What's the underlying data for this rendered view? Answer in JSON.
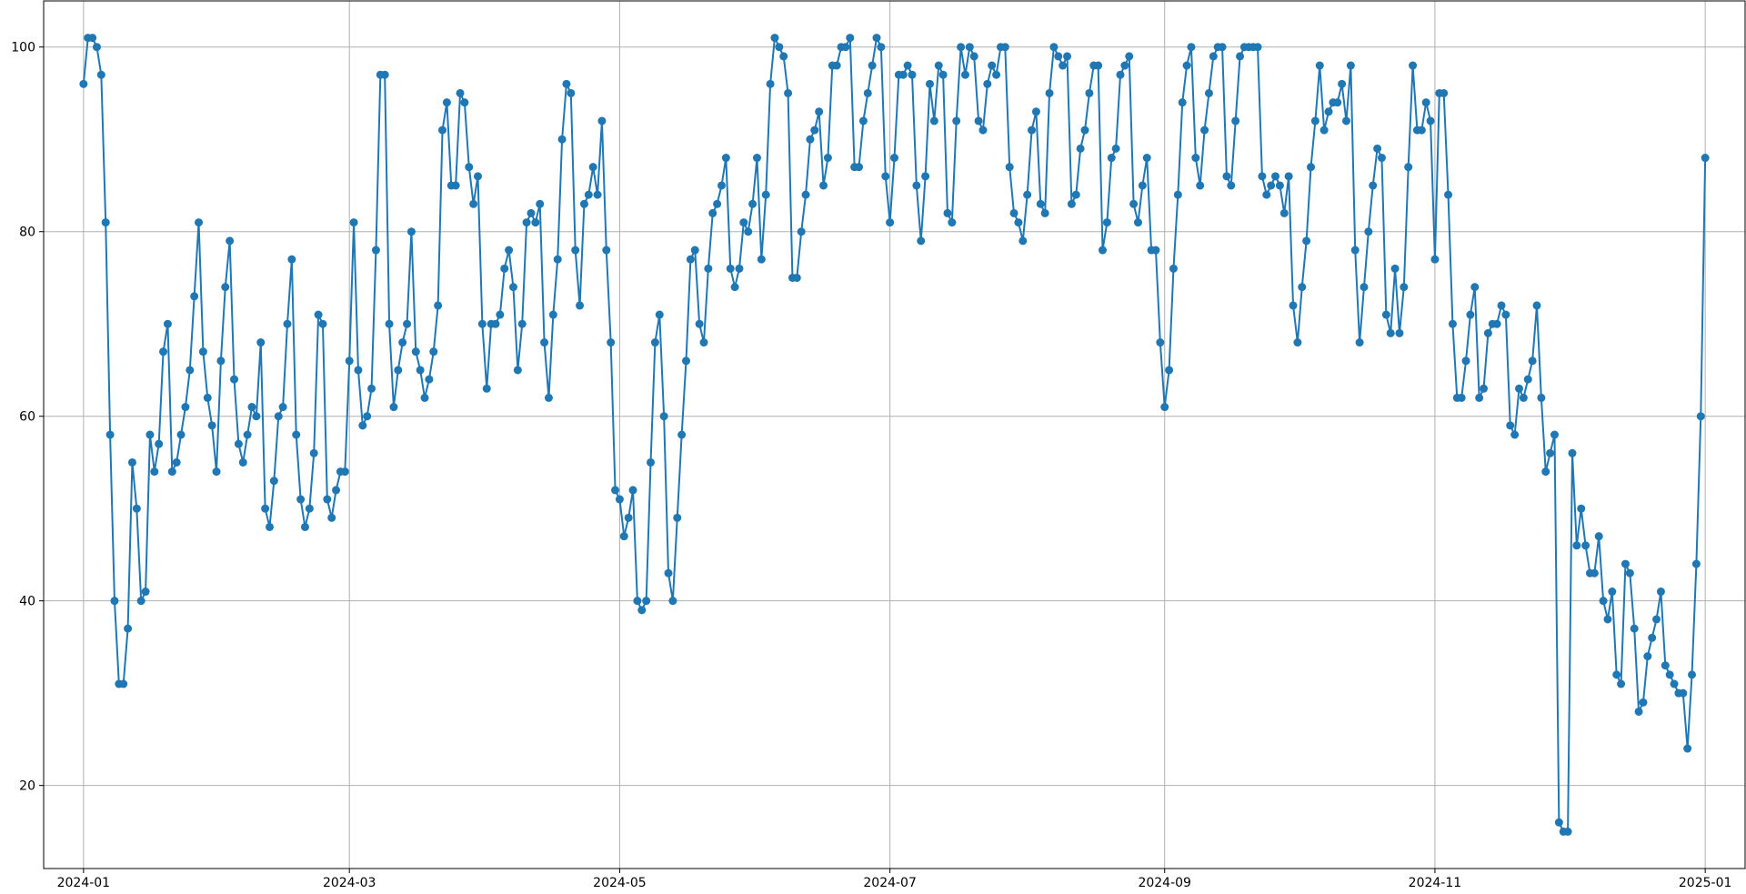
{
  "chart_data": {
    "type": "line",
    "title": "",
    "xlabel": "",
    "ylabel": "",
    "x_start": "2024-01-01",
    "x_step": "1 day",
    "xlim": [
      "2023-12-23",
      "2025-01-10"
    ],
    "ylim": [
      11,
      105
    ],
    "xticks": [
      "2024-01",
      "2024-03",
      "2024-05",
      "2024-07",
      "2024-09",
      "2024-11",
      "2025-01"
    ],
    "yticks": [
      20,
      40,
      60,
      80,
      100
    ],
    "grid": true,
    "legend": "none",
    "marker": "circle",
    "series": [
      {
        "color": "#1f77b4",
        "values": [
          96,
          101,
          101,
          100,
          97,
          81,
          58,
          40,
          31,
          31,
          37,
          55,
          50,
          40,
          41,
          58,
          54,
          57,
          67,
          70,
          54,
          55,
          58,
          61,
          65,
          73,
          81,
          67,
          62,
          59,
          54,
          66,
          74,
          79,
          64,
          57,
          55,
          58,
          61,
          60,
          68,
          50,
          48,
          53,
          60,
          61,
          70,
          77,
          58,
          51,
          48,
          50,
          56,
          71,
          70,
          51,
          49,
          52,
          54,
          54,
          66,
          81,
          65,
          59,
          60,
          63,
          78,
          97,
          97,
          70,
          61,
          65,
          68,
          70,
          80,
          67,
          65,
          62,
          64,
          67,
          72,
          91,
          94,
          85,
          85,
          95,
          94,
          87,
          83,
          86,
          70,
          63,
          70,
          70,
          71,
          76,
          78,
          74,
          65,
          70,
          81,
          82,
          81,
          83,
          68,
          62,
          71,
          77,
          90,
          96,
          95,
          78,
          72,
          83,
          84,
          87,
          84,
          92,
          78,
          68,
          52,
          51,
          47,
          49,
          52,
          40,
          39,
          40,
          55,
          68,
          71,
          60,
          43,
          40,
          49,
          58,
          66,
          77,
          78,
          70,
          68,
          76,
          82,
          83,
          85,
          88,
          76,
          74,
          76,
          81,
          80,
          83,
          88,
          77,
          84,
          96,
          101,
          100,
          99,
          95,
          75,
          75,
          80,
          84,
          90,
          91,
          93,
          85,
          88,
          98,
          98,
          100,
          100,
          101,
          87,
          87,
          92,
          95,
          98,
          101,
          100,
          86,
          81,
          88,
          97,
          97,
          98,
          97,
          85,
          79,
          86,
          96,
          92,
          98,
          97,
          82,
          81,
          92,
          100,
          97,
          100,
          99,
          92,
          91,
          96,
          98,
          97,
          100,
          100,
          87,
          82,
          81,
          79,
          84,
          91,
          93,
          83,
          82,
          95,
          100,
          99,
          98,
          99,
          83,
          84,
          89,
          91,
          95,
          98,
          98,
          78,
          81,
          88,
          89,
          97,
          98,
          99,
          83,
          81,
          85,
          88,
          78,
          78,
          68,
          61,
          65,
          76,
          84,
          94,
          98,
          100,
          88,
          85,
          91,
          95,
          99,
          100,
          100,
          86,
          85,
          92,
          99,
          100,
          100,
          100,
          100,
          86,
          84,
          85,
          86,
          85,
          82,
          86,
          72,
          68,
          74,
          79,
          87,
          92,
          98,
          91,
          93,
          94,
          94,
          96,
          92,
          98,
          78,
          68,
          74,
          80,
          85,
          89,
          88,
          71,
          69,
          76,
          69,
          74,
          87,
          98,
          91,
          91,
          94,
          92,
          77,
          95,
          95,
          84,
          70,
          62,
          62,
          66,
          71,
          74,
          62,
          63,
          69,
          70,
          70,
          72,
          71,
          59,
          58,
          63,
          62,
          64,
          66,
          72,
          62,
          54,
          56,
          58,
          16,
          15,
          15,
          56,
          46,
          50,
          46,
          43,
          43,
          47,
          40,
          38,
          41,
          32,
          31,
          44,
          43,
          37,
          28,
          29,
          34,
          36,
          38,
          41,
          33,
          32,
          31,
          30,
          30,
          24,
          32,
          44,
          60,
          88
        ]
      }
    ]
  }
}
